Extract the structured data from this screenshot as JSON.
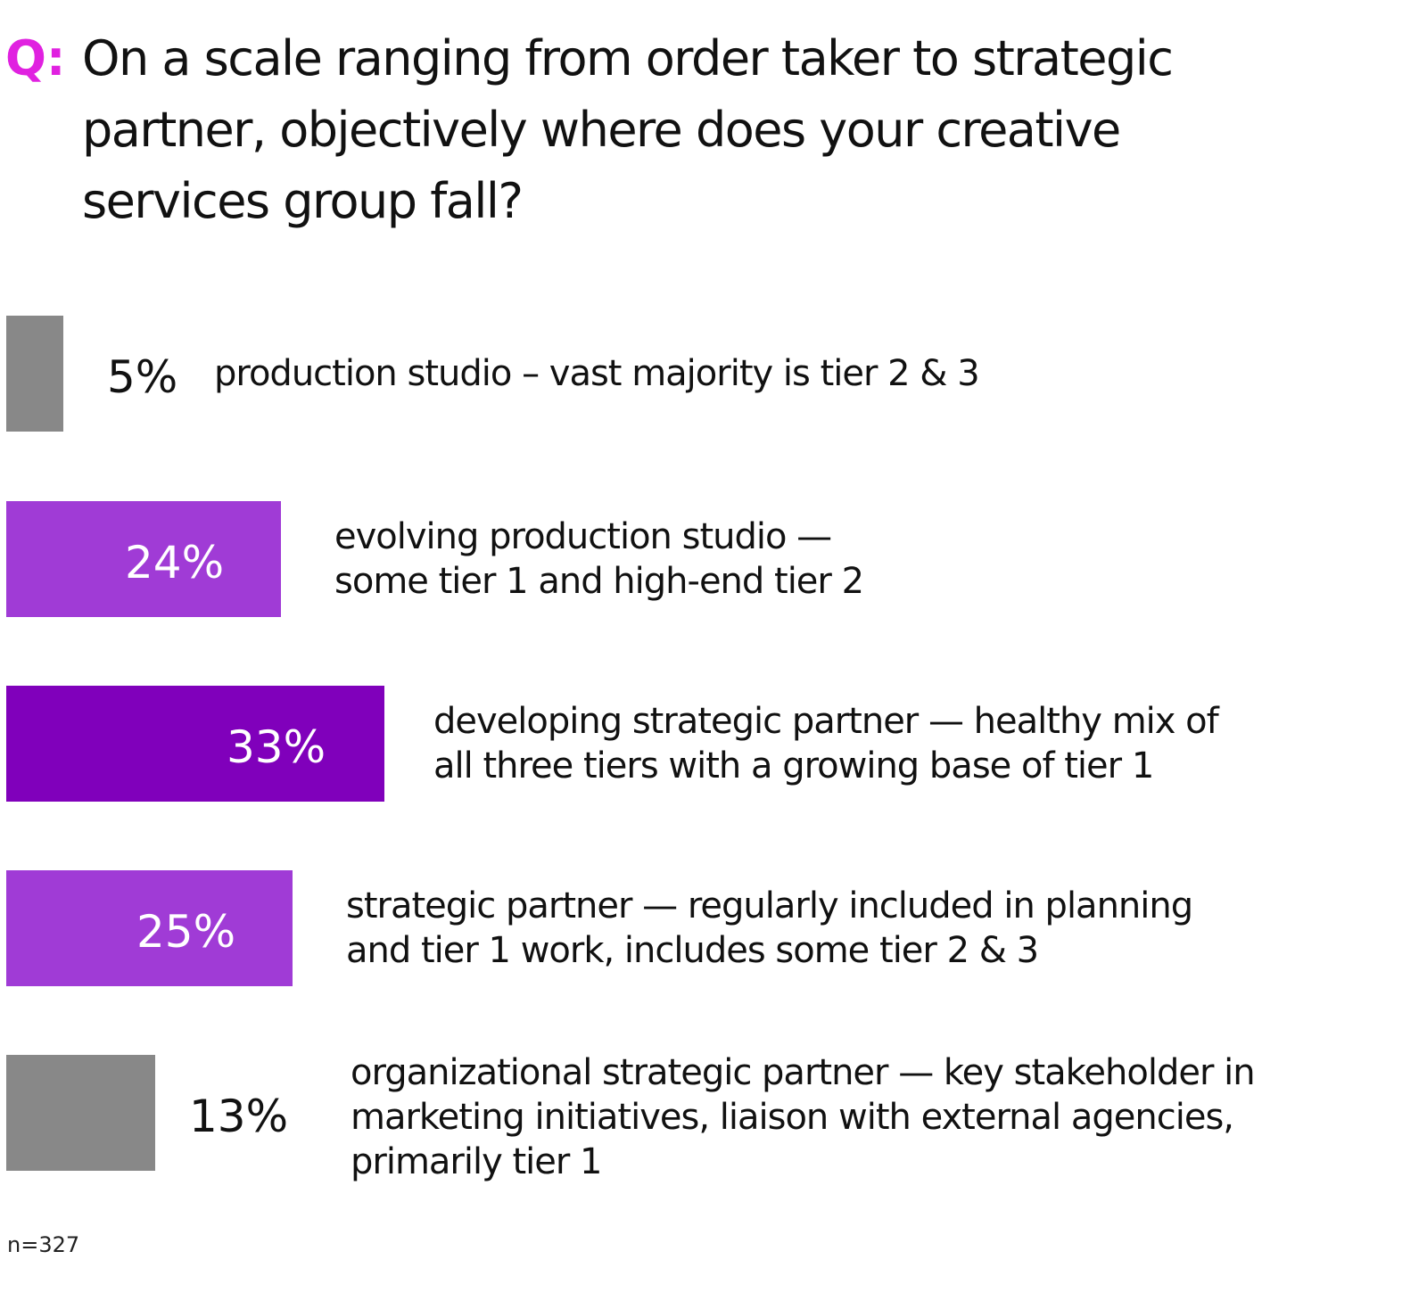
{
  "question": {
    "prefix": "Q:",
    "text": "On a scale ranging from order taker to strategic partner, objectively where does your creative services group fall?"
  },
  "colors": {
    "question_prefix": "#e021e0",
    "bar_gray": "#888888",
    "bar_light_purple": "#a03bd6",
    "bar_dark_purple": "#8000bb",
    "label_dark": "#111111",
    "label_light": "#ffffff"
  },
  "chart_data": {
    "type": "bar",
    "orientation": "horizontal",
    "unit": "%",
    "categories": [
      "production studio – vast majority is tier 2 & 3",
      "evolving production studio — some tier 1 and high-end tier 2",
      "developing strategic partner — healthy mix of all three tiers with a growing base of tier 1",
      "strategic partner — regularly included in planning and tier 1 work, includes some tier 2 & 3",
      "organizational strategic partner — key stakeholder in marketing initiatives, liaison with external agencies, primarily tier 1"
    ],
    "values": [
      5,
      24,
      33,
      25,
      13
    ],
    "value_labels": [
      "5%",
      "24%",
      "33%",
      "25%",
      "13%"
    ],
    "bar_colors": [
      "#888888",
      "#a03bd6",
      "#8000bb",
      "#a03bd6",
      "#888888"
    ],
    "descriptions": [
      [
        "production studio – vast majority is tier 2 & 3"
      ],
      [
        "evolving production studio —",
        "some tier 1 and high-end tier 2"
      ],
      [
        "developing strategic partner — healthy mix of",
        "all three tiers with a growing base of tier 1"
      ],
      [
        "strategic partner — regularly included in planning",
        "and tier 1 work, includes some tier 2 & 3"
      ],
      [
        "organizational strategic partner — key stakeholder in",
        "marketing initiatives, liaison with external agencies,",
        "primarily tier 1"
      ]
    ],
    "grid": false,
    "legend": "none"
  },
  "footnote": "n=327"
}
